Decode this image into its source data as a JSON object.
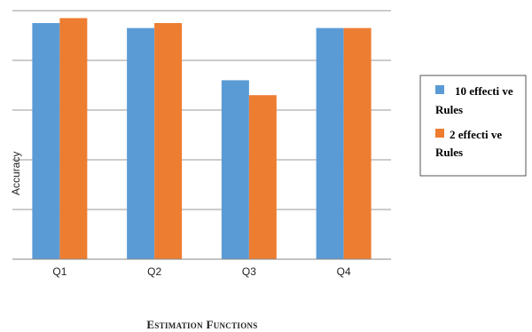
{
  "chart_data": {
    "type": "bar",
    "categories": [
      "Q1",
      "Q2",
      "Q3",
      "Q4"
    ],
    "series": [
      {
        "name": "10 effective Rules",
        "values": [
          0.95,
          0.93,
          0.72,
          0.93
        ],
        "color": "#5B9BD5"
      },
      {
        "name": "2 effective Rules",
        "values": [
          0.97,
          0.95,
          0.66,
          0.93
        ],
        "color": "#ED7D31"
      }
    ],
    "title": "",
    "xlabel": "Estimation Functions",
    "ylabel": "Accuracy",
    "ylim": [
      0,
      1
    ],
    "yticks_labeled": false,
    "grid": true,
    "legend_position": "right"
  },
  "legend": {
    "items": [
      {
        "line1": "10 effecti ve",
        "line2": "Rules"
      },
      {
        "line1": "2 effecti ve",
        "line2": "Rules"
      }
    ]
  }
}
